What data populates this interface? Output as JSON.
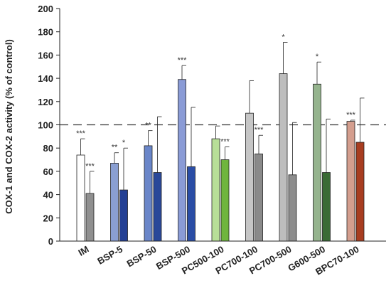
{
  "chart_data": {
    "type": "bar",
    "ylabel": "COX-1 and COX-2 activity (% of control)",
    "ylim": [
      0,
      200
    ],
    "yticks": [
      "0",
      "20",
      "40",
      "60",
      "80",
      "100",
      "120",
      "140",
      "160",
      "180",
      "200"
    ],
    "reference_line": 100,
    "categories": [
      "IM",
      "BSP-5",
      "BSP-50",
      "BSP-500",
      "PC500-100",
      "PC700-100",
      "PC700-500",
      "G600-500",
      "BPC70-100"
    ],
    "series": [
      {
        "values": [
          74,
          67,
          82,
          139,
          88,
          110,
          144,
          135,
          103
        ],
        "errors": [
          14,
          9,
          13,
          12,
          11,
          28,
          27,
          19,
          1
        ],
        "significance": [
          "***",
          "**",
          "**",
          "***",
          "",
          "",
          "*",
          "*",
          "***"
        ],
        "colors": [
          "#ffffff",
          "#8a9fd2",
          "#6a86c9",
          "#8a9bd6",
          "#b8df98",
          "#c6c6c6",
          "#bdbdbd",
          "#95b48e",
          "#d49e8e"
        ]
      },
      {
        "values": [
          41,
          44,
          59,
          64,
          70,
          75,
          57,
          59,
          85
        ],
        "errors": [
          19,
          36,
          48,
          51,
          11,
          16,
          45,
          46,
          38
        ],
        "significance": [
          "***",
          "*",
          "",
          "",
          "***",
          "***",
          "",
          "",
          ""
        ],
        "colors": [
          "#8f8f8f",
          "#233f94",
          "#2a4899",
          "#2a4da5",
          "#6fb53d",
          "#8a8a8a",
          "#8d8d8d",
          "#3a6b35",
          "#a83d20"
        ]
      }
    ]
  }
}
